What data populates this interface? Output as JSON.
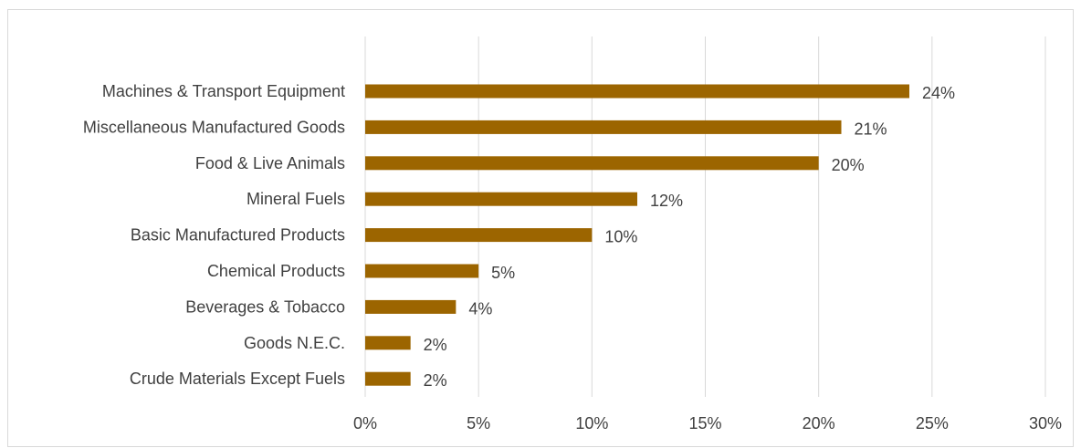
{
  "chart_data": {
    "type": "bar",
    "orientation": "horizontal",
    "categories": [
      "Machines & Transport Equipment",
      "Miscellaneous Manufactured Goods",
      "Food & Live Animals",
      "Mineral Fuels",
      "Basic Manufactured Products",
      "Chemical Products",
      "Beverages & Tobacco",
      "Goods N.E.C.",
      "Crude Materials Except Fuels"
    ],
    "values": [
      24,
      21,
      20,
      12,
      10,
      5,
      4,
      2,
      2
    ],
    "data_labels": [
      "24%",
      "21%",
      "20%",
      "12%",
      "10%",
      "5%",
      "4%",
      "2%",
      "2%"
    ],
    "x_ticks": [
      "0%",
      "5%",
      "10%",
      "15%",
      "20%",
      "25%",
      "30%"
    ],
    "xlim": [
      0,
      30
    ],
    "grid": "vertical",
    "legend": "none",
    "bar_color": "#9c6500",
    "grid_color": "#d9d9d9",
    "text_color": "#404040"
  }
}
